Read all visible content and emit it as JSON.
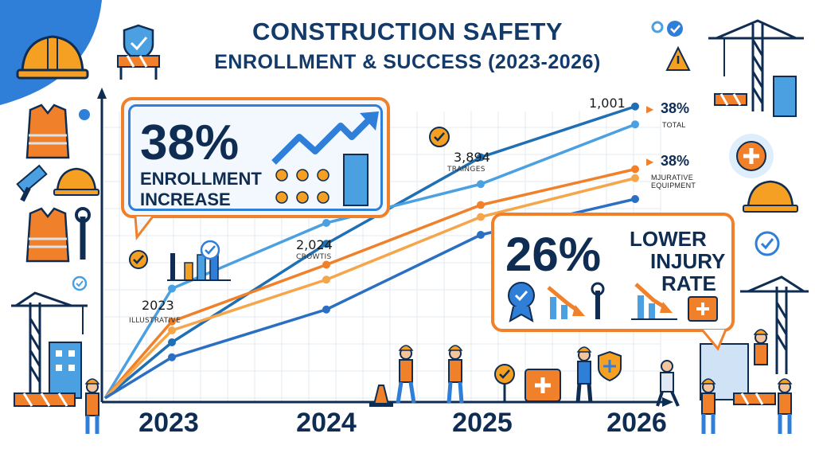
{
  "title": {
    "line1": "CONSTRUCTION SAFETY",
    "line2": "ENROLLMENT & SUCCESS (2023-2026)"
  },
  "chart_data": {
    "type": "line",
    "title": "CONSTRUCTION SAFETY ENROLLMENT & SUCCESS (2023-2026)",
    "categories": [
      "2023",
      "2024",
      "2025",
      "2026"
    ],
    "xlabel": "",
    "ylabel": "",
    "grid": true,
    "series": [
      {
        "color": "#1f6fb5",
        "values": [
          0.2,
          0.53,
          0.82,
          0.99
        ]
      },
      {
        "color": "#4aa0e0",
        "values": [
          0.38,
          0.6,
          0.73,
          0.93
        ]
      },
      {
        "color": "#f0802a",
        "values": [
          0.27,
          0.46,
          0.66,
          0.78
        ]
      },
      {
        "color": "#f5a64a",
        "values": [
          0.24,
          0.41,
          0.62,
          0.75
        ]
      },
      {
        "color": "#2a6fc2",
        "values": [
          0.15,
          0.31,
          0.56,
          0.68
        ]
      }
    ],
    "annotations": [
      {
        "value": "2023",
        "label": "ILLUSTRATIVE"
      },
      {
        "value": "2,024",
        "label": "CROWTIS"
      },
      {
        "value": "3,894",
        "label": "TRAINGES"
      },
      {
        "value": "1,001",
        "label": ""
      }
    ],
    "legend": [
      {
        "value": "38%",
        "label": "TOTAL"
      },
      {
        "value": "38%",
        "label": "MJURATIVE EQUIPMENT"
      }
    ]
  },
  "callouts": {
    "enrollment": {
      "value": "38%",
      "label_line1": "ENROLLMENT",
      "label_line2": "INCREASE"
    },
    "injury": {
      "value": "26%",
      "label_line1": "LOWER",
      "label_line2": "INJURY",
      "label_line3": "RATE"
    }
  },
  "icons": [
    "hard-hat-icon",
    "shield-check-icon",
    "barrier-icon",
    "safety-vest-icon",
    "hammer-icon",
    "wrench-icon",
    "crane-icon",
    "warning-icon",
    "first-aid-icon",
    "check-badge-icon",
    "worker-icon",
    "traffic-cone-icon",
    "trend-arrow-icon",
    "building-icon"
  ],
  "colors": {
    "navy": "#0f2c52",
    "orange": "#f0802a",
    "blue": "#2f7ed8",
    "light_blue": "#4aa0e0"
  }
}
